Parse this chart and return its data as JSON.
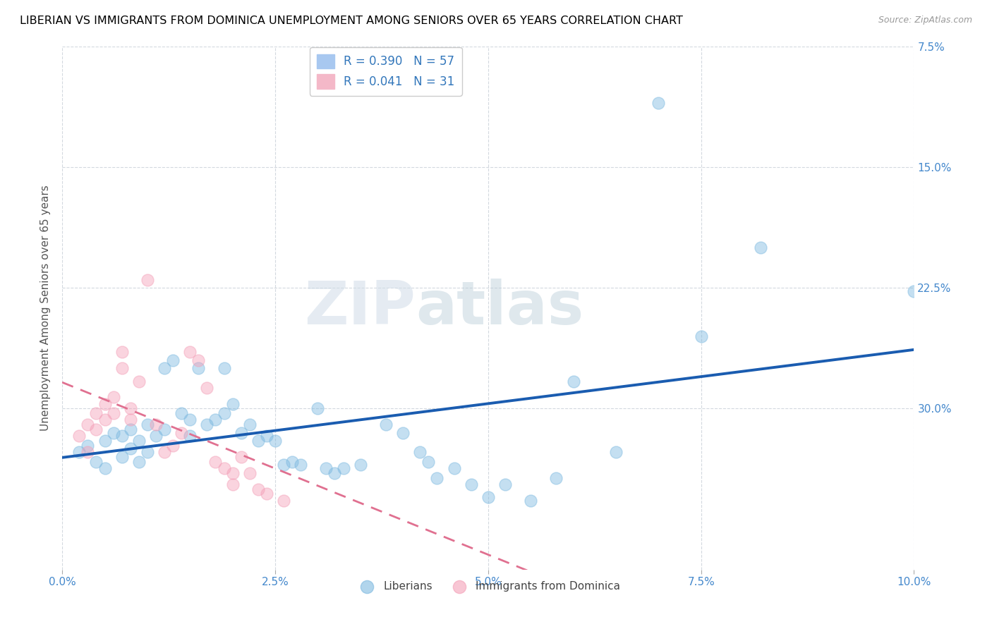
{
  "title": "LIBERIAN VS IMMIGRANTS FROM DOMINICA UNEMPLOYMENT AMONG SENIORS OVER 65 YEARS CORRELATION CHART",
  "source": "Source: ZipAtlas.com",
  "ylabel": "Unemployment Among Seniors over 65 years",
  "xlabel_ticks": [
    "0.0%",
    "2.5%",
    "5.0%",
    "7.5%",
    "10.0%"
  ],
  "ylabel_ticks": [
    "30.0%",
    "22.5%",
    "15.0%",
    "7.5%"
  ],
  "xlim": [
    0.0,
    0.1
  ],
  "ylim": [
    -0.025,
    0.3
  ],
  "ytick_vals": [
    0.075,
    0.15,
    0.225,
    0.3
  ],
  "xtick_vals": [
    0.0,
    0.025,
    0.05,
    0.075,
    0.1
  ],
  "blue_color": "#7db9e0",
  "pink_color": "#f4a0b8",
  "trend_blue": "#1a5cb0",
  "trend_pink": "#e07090",
  "watermark_zip": "ZIP",
  "watermark_atlas": "atlas",
  "liberian_points": [
    [
      0.002,
      0.048
    ],
    [
      0.003,
      0.052
    ],
    [
      0.004,
      0.042
    ],
    [
      0.005,
      0.055
    ],
    [
      0.005,
      0.038
    ],
    [
      0.006,
      0.06
    ],
    [
      0.007,
      0.058
    ],
    [
      0.007,
      0.045
    ],
    [
      0.008,
      0.062
    ],
    [
      0.008,
      0.05
    ],
    [
      0.009,
      0.055
    ],
    [
      0.009,
      0.042
    ],
    [
      0.01,
      0.065
    ],
    [
      0.01,
      0.048
    ],
    [
      0.011,
      0.058
    ],
    [
      0.012,
      0.1
    ],
    [
      0.012,
      0.062
    ],
    [
      0.013,
      0.105
    ],
    [
      0.014,
      0.072
    ],
    [
      0.015,
      0.068
    ],
    [
      0.015,
      0.058
    ],
    [
      0.016,
      0.1
    ],
    [
      0.017,
      0.065
    ],
    [
      0.018,
      0.068
    ],
    [
      0.019,
      0.1
    ],
    [
      0.019,
      0.072
    ],
    [
      0.02,
      0.078
    ],
    [
      0.021,
      0.06
    ],
    [
      0.022,
      0.065
    ],
    [
      0.023,
      0.055
    ],
    [
      0.024,
      0.058
    ],
    [
      0.025,
      0.055
    ],
    [
      0.026,
      0.04
    ],
    [
      0.027,
      0.042
    ],
    [
      0.028,
      0.04
    ],
    [
      0.03,
      0.075
    ],
    [
      0.031,
      0.038
    ],
    [
      0.032,
      0.035
    ],
    [
      0.033,
      0.038
    ],
    [
      0.035,
      0.04
    ],
    [
      0.038,
      0.065
    ],
    [
      0.04,
      0.06
    ],
    [
      0.042,
      0.048
    ],
    [
      0.043,
      0.042
    ],
    [
      0.044,
      0.032
    ],
    [
      0.046,
      0.038
    ],
    [
      0.048,
      0.028
    ],
    [
      0.05,
      0.02
    ],
    [
      0.052,
      0.028
    ],
    [
      0.055,
      0.018
    ],
    [
      0.058,
      0.032
    ],
    [
      0.06,
      0.092
    ],
    [
      0.065,
      0.048
    ],
    [
      0.07,
      0.265
    ],
    [
      0.075,
      0.12
    ],
    [
      0.082,
      0.175
    ],
    [
      0.1,
      0.148
    ]
  ],
  "dominica_points": [
    [
      0.002,
      0.058
    ],
    [
      0.003,
      0.065
    ],
    [
      0.003,
      0.048
    ],
    [
      0.004,
      0.072
    ],
    [
      0.004,
      0.062
    ],
    [
      0.005,
      0.078
    ],
    [
      0.005,
      0.068
    ],
    [
      0.006,
      0.082
    ],
    [
      0.006,
      0.072
    ],
    [
      0.007,
      0.11
    ],
    [
      0.007,
      0.1
    ],
    [
      0.008,
      0.075
    ],
    [
      0.008,
      0.068
    ],
    [
      0.009,
      0.092
    ],
    [
      0.01,
      0.155
    ],
    [
      0.011,
      0.065
    ],
    [
      0.012,
      0.048
    ],
    [
      0.013,
      0.052
    ],
    [
      0.014,
      0.06
    ],
    [
      0.015,
      0.11
    ],
    [
      0.016,
      0.105
    ],
    [
      0.017,
      0.088
    ],
    [
      0.018,
      0.042
    ],
    [
      0.019,
      0.038
    ],
    [
      0.02,
      0.035
    ],
    [
      0.02,
      0.028
    ],
    [
      0.021,
      0.045
    ],
    [
      0.022,
      0.035
    ],
    [
      0.023,
      0.025
    ],
    [
      0.024,
      0.022
    ],
    [
      0.026,
      0.018
    ]
  ]
}
